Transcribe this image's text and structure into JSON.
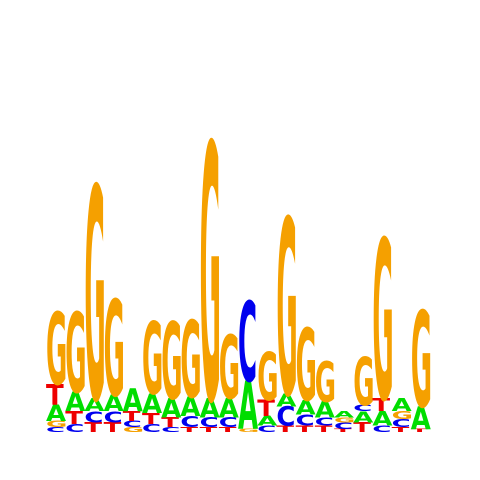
{
  "logo": {
    "colors": {
      "A": "#00dd00",
      "C": "#0000ee",
      "G": "#f5a000",
      "T": "#ee0000"
    },
    "positions": [
      [
        {
          "b": "C",
          "v": 0.03
        },
        {
          "b": "G",
          "v": 0.04
        },
        {
          "b": "A",
          "v": 0.1
        },
        {
          "b": "T",
          "v": 0.13
        },
        {
          "b": "G",
          "v": 0.45
        }
      ],
      [
        {
          "b": "C",
          "v": 0.05
        },
        {
          "b": "T",
          "v": 0.08
        },
        {
          "b": "A",
          "v": 0.12
        },
        {
          "b": "G",
          "v": 0.5
        }
      ],
      [
        {
          "b": "T",
          "v": 0.06
        },
        {
          "b": "C",
          "v": 0.07
        },
        {
          "b": "A",
          "v": 0.08
        },
        {
          "b": "G",
          "v": 1.33
        }
      ],
      [
        {
          "b": "T",
          "v": 0.06
        },
        {
          "b": "C",
          "v": 0.07
        },
        {
          "b": "A",
          "v": 0.1
        },
        {
          "b": "G",
          "v": 0.6
        }
      ],
      [
        {
          "b": "G",
          "v": 0.03
        },
        {
          "b": "C",
          "v": 0.04
        },
        {
          "b": "T",
          "v": 0.06
        },
        {
          "b": "A",
          "v": 0.14
        }
      ],
      [
        {
          "b": "C",
          "v": 0.05
        },
        {
          "b": "T",
          "v": 0.07
        },
        {
          "b": "A",
          "v": 0.12
        },
        {
          "b": "G",
          "v": 0.45
        }
      ],
      [
        {
          "b": "C",
          "v": 0.03
        },
        {
          "b": "T",
          "v": 0.06
        },
        {
          "b": "A",
          "v": 0.12
        },
        {
          "b": "G",
          "v": 0.48
        }
      ],
      [
        {
          "b": "T",
          "v": 0.03
        },
        {
          "b": "C",
          "v": 0.07
        },
        {
          "b": "A",
          "v": 0.12
        },
        {
          "b": "G",
          "v": 0.48
        }
      ],
      [
        {
          "b": "T",
          "v": 0.03
        },
        {
          "b": "C",
          "v": 0.06
        },
        {
          "b": "A",
          "v": 0.12
        },
        {
          "b": "G",
          "v": 1.6
        }
      ],
      [
        {
          "b": "T",
          "v": 0.03
        },
        {
          "b": "C",
          "v": 0.06
        },
        {
          "b": "A",
          "v": 0.12
        },
        {
          "b": "G",
          "v": 0.4
        }
      ],
      [
        {
          "b": "G",
          "v": 0.02
        },
        {
          "b": "A",
          "v": 0.3
        },
        {
          "b": "C",
          "v": 0.5
        }
      ],
      [
        {
          "b": "C",
          "v": 0.04
        },
        {
          "b": "A",
          "v": 0.06
        },
        {
          "b": "T",
          "v": 0.1
        },
        {
          "b": "G",
          "v": 0.3
        }
      ],
      [
        {
          "b": "T",
          "v": 0.04
        },
        {
          "b": "C",
          "v": 0.12
        },
        {
          "b": "A",
          "v": 0.08
        },
        {
          "b": "G",
          "v": 1.1
        }
      ],
      [
        {
          "b": "T",
          "v": 0.04
        },
        {
          "b": "C",
          "v": 0.07
        },
        {
          "b": "A",
          "v": 0.09
        },
        {
          "b": "G",
          "v": 0.45
        }
      ],
      [
        {
          "b": "T",
          "v": 0.04
        },
        {
          "b": "C",
          "v": 0.05
        },
        {
          "b": "A",
          "v": 0.1
        },
        {
          "b": "G",
          "v": 0.25
        }
      ],
      [
        {
          "b": "T",
          "v": 0.02
        },
        {
          "b": "C",
          "v": 0.04
        },
        {
          "b": "G",
          "v": 0.03
        },
        {
          "b": "A",
          "v": 0.04
        }
      ],
      [
        {
          "b": "T",
          "v": 0.06
        },
        {
          "b": "A",
          "v": 0.07
        },
        {
          "b": "C",
          "v": 0.04
        },
        {
          "b": "G",
          "v": 0.3
        }
      ],
      [
        {
          "b": "C",
          "v": 0.04
        },
        {
          "b": "A",
          "v": 0.09
        },
        {
          "b": "T",
          "v": 0.08
        },
        {
          "b": "G",
          "v": 1.0
        }
      ],
      [
        {
          "b": "T",
          "v": 0.03
        },
        {
          "b": "C",
          "v": 0.05
        },
        {
          "b": "G",
          "v": 0.05
        },
        {
          "b": "A",
          "v": 0.08
        }
      ],
      [
        {
          "b": "T",
          "v": 0.02
        },
        {
          "b": "A",
          "v": 0.14
        },
        {
          "b": "G",
          "v": 0.6
        }
      ]
    ]
  }
}
